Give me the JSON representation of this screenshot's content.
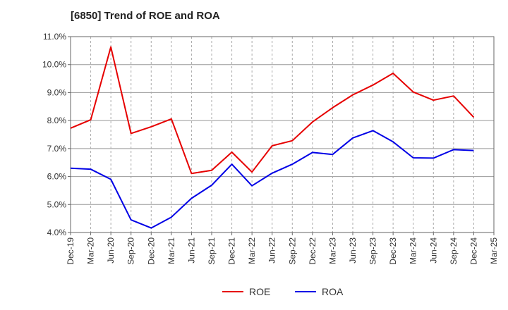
{
  "chart_data": {
    "type": "line",
    "title": "[6850]  Trend of ROE and ROA",
    "xlabel": "",
    "ylabel": "",
    "categories": [
      "Dec-19",
      "Mar-20",
      "Jun-20",
      "Sep-20",
      "Dec-20",
      "Mar-21",
      "Jun-21",
      "Sep-21",
      "Dec-21",
      "Mar-22",
      "Jun-22",
      "Sep-22",
      "Dec-22",
      "Mar-23",
      "Jun-23",
      "Sep-23",
      "Dec-23",
      "Mar-24",
      "Jun-24",
      "Sep-24",
      "Dec-24",
      "Mar-25"
    ],
    "series": [
      {
        "name": "ROE",
        "color": "#e60000",
        "values": [
          7.73,
          8.03,
          10.63,
          7.54,
          7.78,
          8.06,
          6.11,
          6.22,
          6.87,
          6.16,
          7.1,
          7.28,
          7.95,
          8.46,
          8.92,
          9.27,
          9.69,
          9.02,
          8.73,
          8.88,
          8.12,
          null
        ]
      },
      {
        "name": "ROA",
        "color": "#0000e6",
        "values": [
          6.3,
          6.26,
          5.9,
          4.45,
          4.16,
          4.55,
          5.22,
          5.69,
          6.44,
          5.67,
          6.12,
          6.44,
          6.86,
          6.79,
          7.38,
          7.64,
          7.24,
          6.67,
          6.66,
          6.96,
          6.93,
          null
        ]
      }
    ],
    "y_ticks": [
      "4.0%",
      "5.0%",
      "6.0%",
      "7.0%",
      "8.0%",
      "9.0%",
      "10.0%",
      "11.0%"
    ],
    "ylim": [
      4.0,
      11.0
    ],
    "grid": true,
    "grid_style": "dashed vertical, horizontal",
    "legend_position": "bottom-center"
  }
}
